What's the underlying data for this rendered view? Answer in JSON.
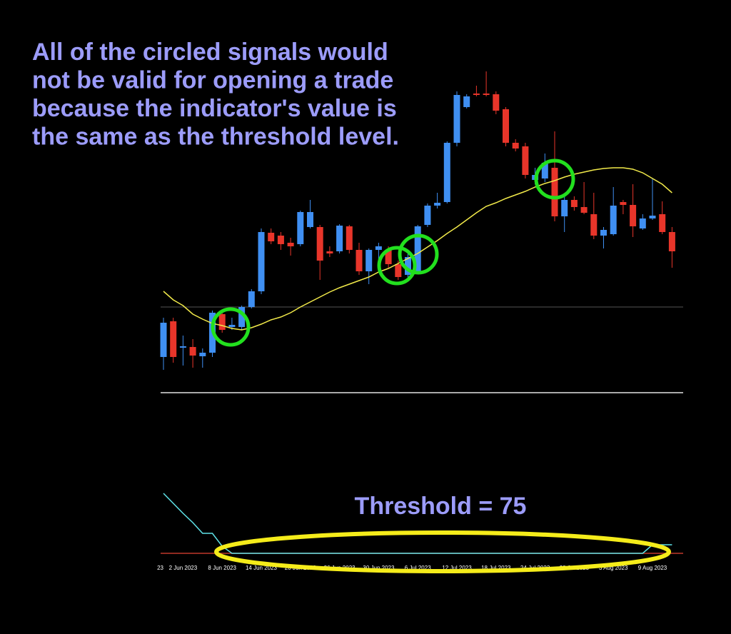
{
  "annotation": [
    "All of the circled signals would",
    "not be valid for opening a trade",
    "because the indicator's value is",
    "the same as the threshold level."
  ],
  "chart_data": [
    {
      "type": "candlestick",
      "categories": [
        "23",
        null,
        "2 Jun 2023",
        null,
        null,
        null,
        "8 Jun 2023",
        null,
        null,
        null,
        "14 Jun 2023",
        null,
        null,
        null,
        "20 Jun 2023",
        null,
        null,
        null,
        "26 Jun 2023",
        null,
        null,
        null,
        "30 Jun 2023",
        null,
        null,
        null,
        "6 Jul 2023",
        null,
        null,
        null,
        "12 Jul 2023",
        null,
        null,
        null,
        "18 Jul 2023",
        null,
        null,
        null,
        "24 Jul 2023",
        null,
        null,
        null,
        "28 Jul 2023",
        null,
        null,
        null,
        "3 Aug 2023",
        null,
        null,
        null,
        "9 Aug 2023",
        null,
        null
      ],
      "open": [
        100,
        150,
        113,
        114,
        101,
        106,
        160,
        142,
        142,
        170,
        192,
        274,
        270,
        260,
        258,
        282,
        282,
        248,
        248,
        283,
        250,
        220,
        250,
        250,
        230,
        215,
        220,
        285,
        312,
        317,
        400,
        450,
        469,
        469,
        468,
        447,
        400,
        395,
        348,
        350,
        365,
        297,
        320,
        310,
        300,
        270,
        272,
        317,
        313,
        280,
        294,
        300,
        275
      ],
      "high": [
        155,
        155,
        130,
        125,
        112,
        165,
        162,
        155,
        172,
        195,
        280,
        280,
        275,
        267,
        305,
        320,
        285,
        255,
        286,
        285,
        260,
        252,
        260,
        255,
        235,
        245,
        285,
        315,
        330,
        402,
        472,
        468,
        480,
        500,
        472,
        450,
        405,
        400,
        365,
        385,
        416,
        325,
        325,
        345,
        330,
        282,
        338,
        320,
        342,
        300,
        350,
        318,
        282
      ],
      "low": [
        82,
        92,
        88,
        85,
        85,
        100,
        134,
        138,
        138,
        168,
        188,
        258,
        250,
        242,
        255,
        280,
        208,
        240,
        245,
        245,
        215,
        202,
        230,
        225,
        208,
        210,
        218,
        282,
        308,
        315,
        395,
        448,
        465,
        465,
        440,
        395,
        388,
        350,
        342,
        345,
        290,
        275,
        305,
        300,
        265,
        252,
        270,
        300,
        268,
        278,
        292,
        272,
        225
      ],
      "close": [
        148,
        100,
        115,
        102,
        106,
        162,
        138,
        145,
        170,
        192,
        275,
        262,
        258,
        255,
        303,
        303,
        235,
        245,
        284,
        250,
        220,
        250,
        255,
        230,
        212,
        240,
        283,
        312,
        316,
        400,
        467,
        465,
        467,
        467,
        445,
        400,
        392,
        355,
        355,
        372,
        297,
        320,
        310,
        302,
        270,
        278,
        312,
        313,
        283,
        294,
        298,
        275,
        248
      ],
      "up_color": "#3f8ff2",
      "down_color": "#e8352a",
      "ma": {
        "color": "#f2ea4a",
        "values": [
          192,
          180,
          172,
          160,
          153,
          147,
          144,
          140,
          138,
          141,
          146,
          152,
          156,
          162,
          170,
          177,
          184,
          191,
          197,
          202,
          207,
          212,
          219,
          224,
          231,
          238,
          245,
          254,
          263,
          273,
          282,
          292,
          302,
          311,
          316,
          322,
          327,
          332,
          338,
          343,
          347,
          352,
          356,
          359,
          362,
          364,
          365,
          365,
          363,
          358,
          350,
          342,
          330
        ]
      },
      "ylim": [
        40,
        520
      ]
    },
    {
      "type": "line",
      "annotation": "Threshold = 75",
      "values": [
        96,
        92.5,
        89,
        85.75,
        82,
        82,
        77.5,
        75,
        75,
        75,
        75,
        75,
        75,
        75,
        75,
        75,
        75,
        75,
        75,
        75,
        75,
        75,
        75,
        75,
        75,
        75,
        75,
        75,
        75,
        75,
        75,
        75,
        75,
        75,
        75,
        75,
        75,
        75,
        75,
        75,
        75,
        75,
        75,
        75,
        75,
        75,
        75,
        75,
        75,
        75,
        78,
        78,
        78
      ],
      "color": "#5fe3e8",
      "threshold": 75,
      "threshold_color": "#c0392b",
      "ylim": [
        71,
        99
      ]
    }
  ]
}
